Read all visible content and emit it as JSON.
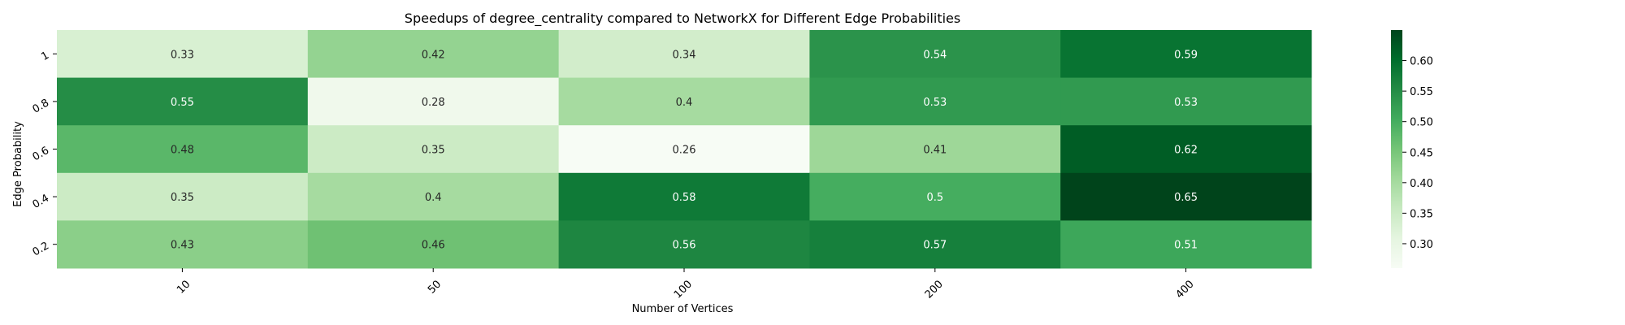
{
  "chart_data": {
    "type": "heatmap",
    "title": "Speedups of degree_centrality compared to NetworkX for Different Edge Probabilities",
    "xlabel": "Number of Vertices",
    "ylabel": "Edge Probability",
    "x_categories": [
      "10",
      "50",
      "100",
      "200",
      "400"
    ],
    "y_categories": [
      "1",
      "0.8",
      "0.6",
      "0.4",
      "0.2"
    ],
    "values": [
      [
        0.33,
        0.42,
        0.34,
        0.54,
        0.59
      ],
      [
        0.55,
        0.28,
        0.4,
        0.53,
        0.53
      ],
      [
        0.48,
        0.35,
        0.26,
        0.41,
        0.62
      ],
      [
        0.35,
        0.4,
        0.58,
        0.5,
        0.65
      ],
      [
        0.43,
        0.46,
        0.56,
        0.57,
        0.51
      ]
    ],
    "value_labels": [
      [
        "0.33",
        "0.42",
        "0.34",
        "0.54",
        "0.59"
      ],
      [
        "0.55",
        "0.28",
        "0.4",
        "0.53",
        "0.53"
      ],
      [
        "0.48",
        "0.35",
        "0.26",
        "0.41",
        "0.62"
      ],
      [
        "0.35",
        "0.4",
        "0.58",
        "0.5",
        "0.65"
      ],
      [
        "0.43",
        "0.46",
        "0.56",
        "0.57",
        "0.51"
      ]
    ],
    "colormap": "Greens",
    "colorbar": {
      "range": [
        0.26,
        0.65
      ],
      "ticks": [
        0.3,
        0.35,
        0.4,
        0.45,
        0.5,
        0.55,
        0.6
      ],
      "tick_labels": [
        "0.30",
        "0.35",
        "0.40",
        "0.45",
        "0.50",
        "0.55",
        "0.60"
      ]
    }
  }
}
